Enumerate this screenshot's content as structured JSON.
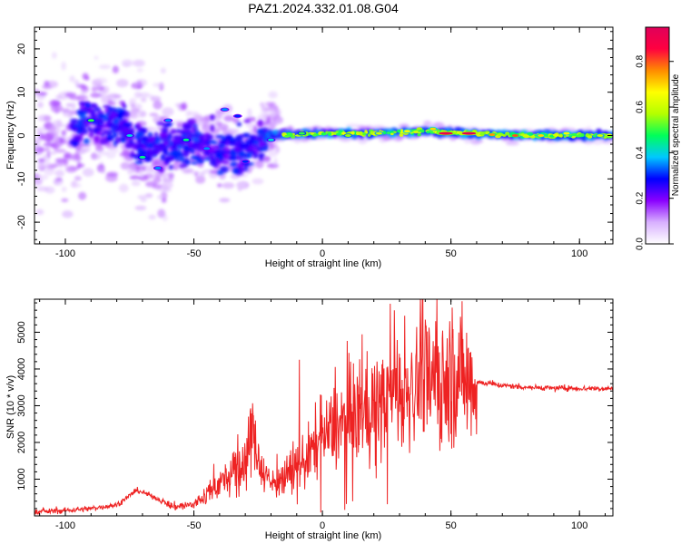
{
  "figure": {
    "title": "PAZ1.2024.332.01.08.G04"
  },
  "chart_data": [
    {
      "type": "heatmap",
      "xlabel": "Height of straight line (km)",
      "ylabel": "Frequency (Hz)",
      "xlim": [
        -112,
        113
      ],
      "ylim": [
        -25,
        25
      ],
      "xticks": [
        -100,
        -50,
        0,
        50,
        100
      ],
      "yticks": [
        -20,
        -10,
        0,
        10,
        20
      ],
      "grid": false,
      "colorbar": {
        "label": "Normalized spectral amplitude",
        "range": [
          0,
          0.95
        ],
        "ticks": [
          "0.0",
          "0.2",
          "0.4",
          "0.6",
          "0.8"
        ],
        "colors": [
          "#ffffff",
          "#d8b0ff",
          "#8a00ff",
          "#0000ff",
          "#00c8ff",
          "#00ff5a",
          "#b4ff00",
          "#ffff00",
          "#ff8c00",
          "#ff0040",
          "#e0005a"
        ]
      },
      "ridge": [
        {
          "x": -95,
          "y": 3
        },
        {
          "x": -80,
          "y": 3
        },
        {
          "x": -70,
          "y": -2
        },
        {
          "x": -60,
          "y": -3
        },
        {
          "x": -50,
          "y": -1
        },
        {
          "x": -40,
          "y": -3
        },
        {
          "x": -30,
          "y": -4
        },
        {
          "x": -23,
          "y": 0
        },
        {
          "x": 0,
          "y": 0.5
        },
        {
          "x": 20,
          "y": 0.5
        },
        {
          "x": 40,
          "y": 1
        },
        {
          "x": 60,
          "y": 0.5
        },
        {
          "x": 80,
          "y": 0
        },
        {
          "x": 113,
          "y": 0
        }
      ],
      "strong_blobs": [
        {
          "x": -90,
          "y": 3.5,
          "v": 0.5
        },
        {
          "x": -75,
          "y": 0,
          "v": 0.4
        },
        {
          "x": -70,
          "y": -5,
          "v": 0.45
        },
        {
          "x": -64,
          "y": -7.5,
          "v": 0.35
        },
        {
          "x": -60,
          "y": 3.5,
          "v": 0.35
        },
        {
          "x": -53,
          "y": -1,
          "v": 0.45
        },
        {
          "x": -45,
          "y": -3,
          "v": 0.35
        },
        {
          "x": -38,
          "y": 6,
          "v": 0.35
        },
        {
          "x": -33,
          "y": 4.5,
          "v": 0.3
        },
        {
          "x": -30,
          "y": -6,
          "v": 0.3
        },
        {
          "x": -20,
          "y": -1,
          "v": 0.4
        },
        {
          "x": -8,
          "y": 0.5,
          "v": 0.5
        },
        {
          "x": 10,
          "y": 0,
          "v": 0.55
        },
        {
          "x": 22,
          "y": 0.5,
          "v": 0.6
        },
        {
          "x": 33,
          "y": 1,
          "v": 0.65
        },
        {
          "x": 43,
          "y": 1.5,
          "v": 0.7
        },
        {
          "x": 48,
          "y": 0.5,
          "v": 0.9
        },
        {
          "x": 57,
          "y": 0.5,
          "v": 0.95
        },
        {
          "x": 66,
          "y": 0.2,
          "v": 0.75
        },
        {
          "x": 75,
          "y": 0,
          "v": 0.8
        },
        {
          "x": 85,
          "y": 0,
          "v": 0.7
        },
        {
          "x": 95,
          "y": 0.5,
          "v": 0.65
        },
        {
          "x": 108,
          "y": 0,
          "v": 0.6
        }
      ]
    },
    {
      "type": "line",
      "xlabel": "Height of straight line (km)",
      "ylabel": "SNR (10 * v/v)",
      "xlim": [
        -112,
        113
      ],
      "ylim": [
        0,
        5900
      ],
      "xticks": [
        -100,
        -50,
        0,
        50,
        100
      ],
      "yticks": [
        1000,
        2000,
        3000,
        4000,
        5000
      ],
      "grid": false,
      "series": [
        {
          "color": "#ee2222",
          "x": [
            -112,
            -100,
            -90,
            -80,
            -75,
            -72,
            -65,
            -58,
            -50,
            -45,
            -40,
            -35,
            -30,
            -27,
            -25,
            -22,
            -20,
            -15,
            -10,
            -5,
            0,
            5,
            10,
            15,
            20,
            25,
            30,
            35,
            40,
            45,
            50,
            55,
            60,
            70,
            80,
            90,
            100,
            113
          ],
          "values": [
            100,
            150,
            200,
            300,
            550,
            700,
            500,
            250,
            300,
            600,
            900,
            1100,
            1500,
            2300,
            1500,
            1100,
            900,
            1000,
            1300,
            1700,
            2100,
            2400,
            2600,
            2800,
            3000,
            3200,
            3400,
            3500,
            3700,
            3800,
            3900,
            3750,
            3650,
            3550,
            3500,
            3480,
            3470,
            3470
          ],
          "peaks": [
            {
              "x": -26,
              "y": 2600
            },
            {
              "x": -9,
              "y": 4250
            },
            {
              "x": 11,
              "y": 4200
            },
            {
              "x": 28,
              "y": 5600
            },
            {
              "x": 32,
              "y": 5450
            },
            {
              "x": 39,
              "y": 5950
            },
            {
              "x": 44,
              "y": 5300
            }
          ]
        }
      ]
    }
  ]
}
